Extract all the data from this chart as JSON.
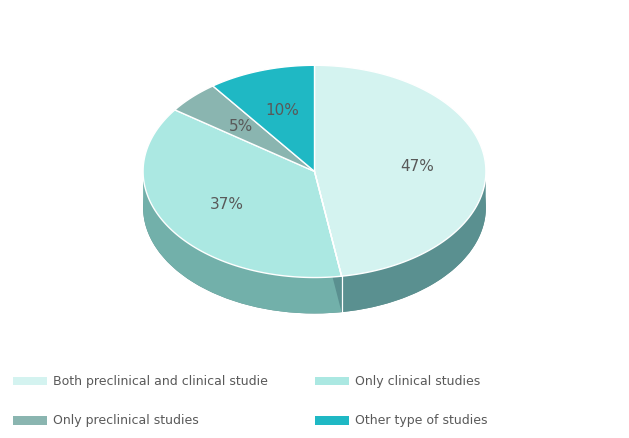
{
  "labels": [
    "Both preclinical and clinical studie",
    "Only clinical studies",
    "Only preclinical studies",
    "Other type of studies"
  ],
  "values": [
    47,
    37,
    5,
    10
  ],
  "top_colors": [
    "#d4f3f0",
    "#abe8e2",
    "#8ab5b0",
    "#1fb8c4"
  ],
  "side_colors": [
    "#5a9090",
    "#72b0aa",
    "#6a9090",
    "#189aa8"
  ],
  "pct_labels": [
    "47%",
    "37%",
    "5%",
    "10%"
  ],
  "legend_labels": [
    "Both preclinical and clinical studie",
    "Only clinical studies",
    "Only preclinical studies",
    "Other type of studies"
  ],
  "legend_colors": [
    "#d4f3f0",
    "#abe8e2",
    "#8ab5b0",
    "#1fb8c4"
  ],
  "background_color": "#ffffff",
  "text_color": "#595959",
  "pct_fontsize": 11,
  "legend_fontsize": 9
}
